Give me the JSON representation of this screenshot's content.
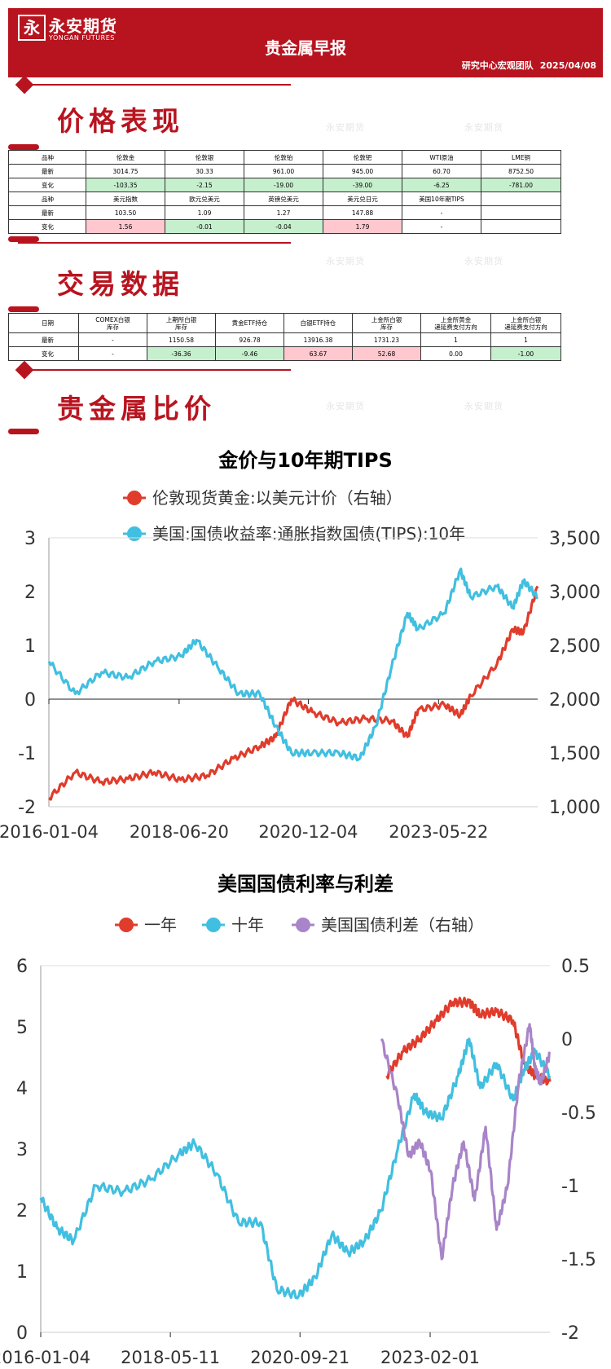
{
  "header": {
    "logo_glyph": "永",
    "logo_cn": "永安期货",
    "logo_en": "YONGAN FUTURES",
    "title": "贵金属早报",
    "team": "研究中心宏观团队",
    "date": "2025/04/08"
  },
  "watermark": "永安期货",
  "sections": {
    "price": "价格表现",
    "trade": "交易数据",
    "ratio": "贵金属比价"
  },
  "price_table": {
    "rows": [
      [
        "品种",
        "伦敦金",
        "伦敦银",
        "伦敦铂",
        "伦敦钯",
        "WTI原油",
        "LME铜"
      ],
      [
        "最新",
        "3014.75",
        "30.33",
        "961.00",
        "945.00",
        "60.70",
        "8752.50"
      ],
      [
        "变化",
        "-103.35",
        "-2.15",
        "-19.00",
        "-39.00",
        "-6.25",
        "-781.00"
      ],
      [
        "品种",
        "美元指数",
        "欧元兑美元",
        "英镑兑美元",
        "美元兑日元",
        "美国10年期TIPS",
        ""
      ],
      [
        "最新",
        "103.50",
        "1.09",
        "1.27",
        "147.88",
        "-",
        ""
      ],
      [
        "变化",
        "1.56",
        "-0.01",
        "-0.04",
        "1.79",
        "-",
        ""
      ]
    ]
  },
  "trade_table": {
    "headers": [
      "日期",
      "COMEX白银\n库存",
      "上期所白银\n库存",
      "黄金ETF持仓",
      "白银ETF持仓",
      "上金所白银\n库存",
      "上金所黄金\n递延费支付方向",
      "上金所白银\n递延费支付方向"
    ],
    "rows": [
      [
        "最新",
        "-",
        "1150.58",
        "926.78",
        "13916.38",
        "1731.23",
        "1",
        "1"
      ],
      [
        "变化",
        "-",
        "-36.36",
        "-9.46",
        "63.67",
        "52.68",
        "0.00",
        "-1.00"
      ]
    ]
  },
  "chart_data": [
    {
      "type": "line",
      "title": "金价与10年期TIPS",
      "series": [
        {
          "name": "伦敦现货黄金:以美元计价（右轴）",
          "axis": "right",
          "color": "#e03c2c",
          "x": [
            2016.0,
            2016.5,
            2017.0,
            2017.5,
            2018.0,
            2018.5,
            2019.0,
            2019.5,
            2020.0,
            2020.3,
            2020.6,
            2021.0,
            2021.5,
            2022.0,
            2022.5,
            2022.8,
            2023.0,
            2023.5,
            2023.8,
            2024.0,
            2024.5,
            2024.8,
            2025.0,
            2025.27
          ],
          "y": [
            1080,
            1320,
            1230,
            1260,
            1320,
            1250,
            1290,
            1450,
            1560,
            1650,
            2000,
            1880,
            1780,
            1820,
            1800,
            1650,
            1900,
            1950,
            1850,
            2030,
            2330,
            2650,
            2620,
            3050
          ]
        },
        {
          "name": "美国:国债收益率:通胀指数国债(TIPS):10年",
          "axis": "left",
          "color": "#41bfe0",
          "x": [
            2016.0,
            2016.5,
            2017.0,
            2017.5,
            2018.0,
            2018.5,
            2018.8,
            2019.2,
            2019.6,
            2020.0,
            2020.3,
            2020.6,
            2021.0,
            2021.5,
            2021.9,
            2022.2,
            2022.5,
            2022.8,
            2023.0,
            2023.5,
            2023.8,
            2024.0,
            2024.5,
            2024.8,
            2025.0,
            2025.27
          ],
          "y": [
            0.7,
            0.1,
            0.5,
            0.4,
            0.7,
            0.8,
            1.1,
            0.6,
            0.1,
            0.1,
            -0.5,
            -1.0,
            -1.0,
            -1.0,
            -1.1,
            -0.5,
            0.6,
            1.6,
            1.3,
            1.6,
            2.4,
            1.9,
            2.1,
            1.7,
            2.2,
            1.9
          ]
        }
      ],
      "x_ticks": [
        "2016-01-04",
        "2018-06-20",
        "2020-12-04",
        "2023-05-22"
      ],
      "x_tick_pos": [
        2016.0,
        2018.47,
        2020.92,
        2023.39
      ],
      "xlim": [
        2016.0,
        2025.27
      ],
      "ylim_left": [
        -2,
        3
      ],
      "left_ticks": [
        "-2",
        "-1",
        "0",
        "1",
        "2",
        "3"
      ],
      "ylim_right": [
        1000,
        3500
      ],
      "right_ticks": [
        "1,000",
        "1,500",
        "2,000",
        "2,500",
        "3,000",
        "3,500"
      ]
    },
    {
      "type": "line",
      "title": "美国国债利率与利差",
      "series": [
        {
          "name": "一年",
          "axis": "left",
          "color": "#e03c2c",
          "x": [
            2022.3,
            2022.6,
            2022.9,
            2023.2,
            2023.5,
            2023.8,
            2024.0,
            2024.3,
            2024.6,
            2024.8,
            2025.0,
            2025.27
          ],
          "y": [
            4.2,
            4.6,
            4.8,
            5.1,
            5.4,
            5.4,
            5.2,
            5.25,
            5.1,
            4.4,
            4.2,
            4.1
          ]
        },
        {
          "name": "十年",
          "axis": "left",
          "color": "#41bfe0",
          "x": [
            2016.0,
            2016.3,
            2016.6,
            2017.0,
            2017.5,
            2018.0,
            2018.5,
            2018.8,
            2019.2,
            2019.6,
            2020.0,
            2020.3,
            2020.7,
            2021.0,
            2021.3,
            2021.6,
            2021.9,
            2022.2,
            2022.5,
            2022.8,
            2023.0,
            2023.3,
            2023.6,
            2023.8,
            2024.0,
            2024.3,
            2024.6,
            2024.8,
            2025.0,
            2025.27
          ],
          "y": [
            2.2,
            1.7,
            1.5,
            2.4,
            2.3,
            2.5,
            2.9,
            3.1,
            2.6,
            1.8,
            1.8,
            0.7,
            0.6,
            0.9,
            1.6,
            1.3,
            1.5,
            2.0,
            3.0,
            3.9,
            3.6,
            3.5,
            4.2,
            4.8,
            4.0,
            4.4,
            3.8,
            4.3,
            4.6,
            4.2
          ]
        },
        {
          "name": "美国国债利差（右轴）",
          "axis": "right",
          "color": "#a884c8",
          "x": [
            2022.2,
            2022.5,
            2022.7,
            2022.9,
            2023.1,
            2023.3,
            2023.5,
            2023.7,
            2023.9,
            2024.1,
            2024.3,
            2024.5,
            2024.7,
            2024.9,
            2025.0,
            2025.1,
            2025.27
          ],
          "y": [
            0.0,
            -0.4,
            -0.8,
            -0.7,
            -0.9,
            -1.5,
            -1.0,
            -0.7,
            -1.1,
            -0.6,
            -1.3,
            -1.0,
            -0.3,
            0.1,
            -0.2,
            -0.3,
            -0.1
          ]
        }
      ],
      "x_ticks": [
        "2016-01-04",
        "2018-05-11",
        "2020-09-21",
        "2023-02-01"
      ],
      "x_tick_pos": [
        2016.0,
        2018.36,
        2020.72,
        2023.09
      ],
      "xlim": [
        2016.0,
        2025.27
      ],
      "ylim_left": [
        0,
        6
      ],
      "left_ticks": [
        "0",
        "1",
        "2",
        "3",
        "4",
        "5",
        "6"
      ],
      "ylim_right": [
        -2,
        0.5
      ],
      "right_ticks": [
        "-2",
        "-1.5",
        "-1",
        "-0.5",
        "0",
        "0.5"
      ]
    }
  ]
}
